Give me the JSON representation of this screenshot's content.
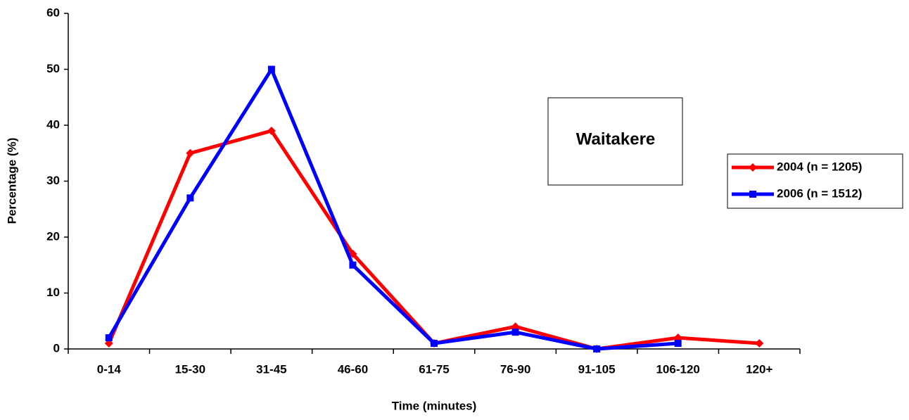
{
  "chart_data": {
    "type": "line",
    "xlabel": "Time (minutes)",
    "ylabel": "Percentage (%)",
    "annotation": "Waitakere",
    "categories": [
      "0-14",
      "15-30",
      "31-45",
      "46-60",
      "61-75",
      "76-90",
      "91-105",
      "106-120",
      "120+"
    ],
    "series": [
      {
        "name": "2004 (n = 1205)",
        "color": "#ff0000",
        "marker": "diamond",
        "values": [
          1,
          35,
          39,
          17,
          1,
          4,
          0,
          2,
          1
        ]
      },
      {
        "name": "2006 (n = 1512)",
        "color": "#0000ff",
        "marker": "square",
        "values": [
          2,
          27,
          50,
          15,
          1,
          3,
          0,
          1,
          null
        ]
      }
    ],
    "ylim": [
      0,
      60
    ],
    "yticks": [
      0,
      10,
      20,
      30,
      40,
      50,
      60
    ],
    "grid": false,
    "legend": "right"
  }
}
